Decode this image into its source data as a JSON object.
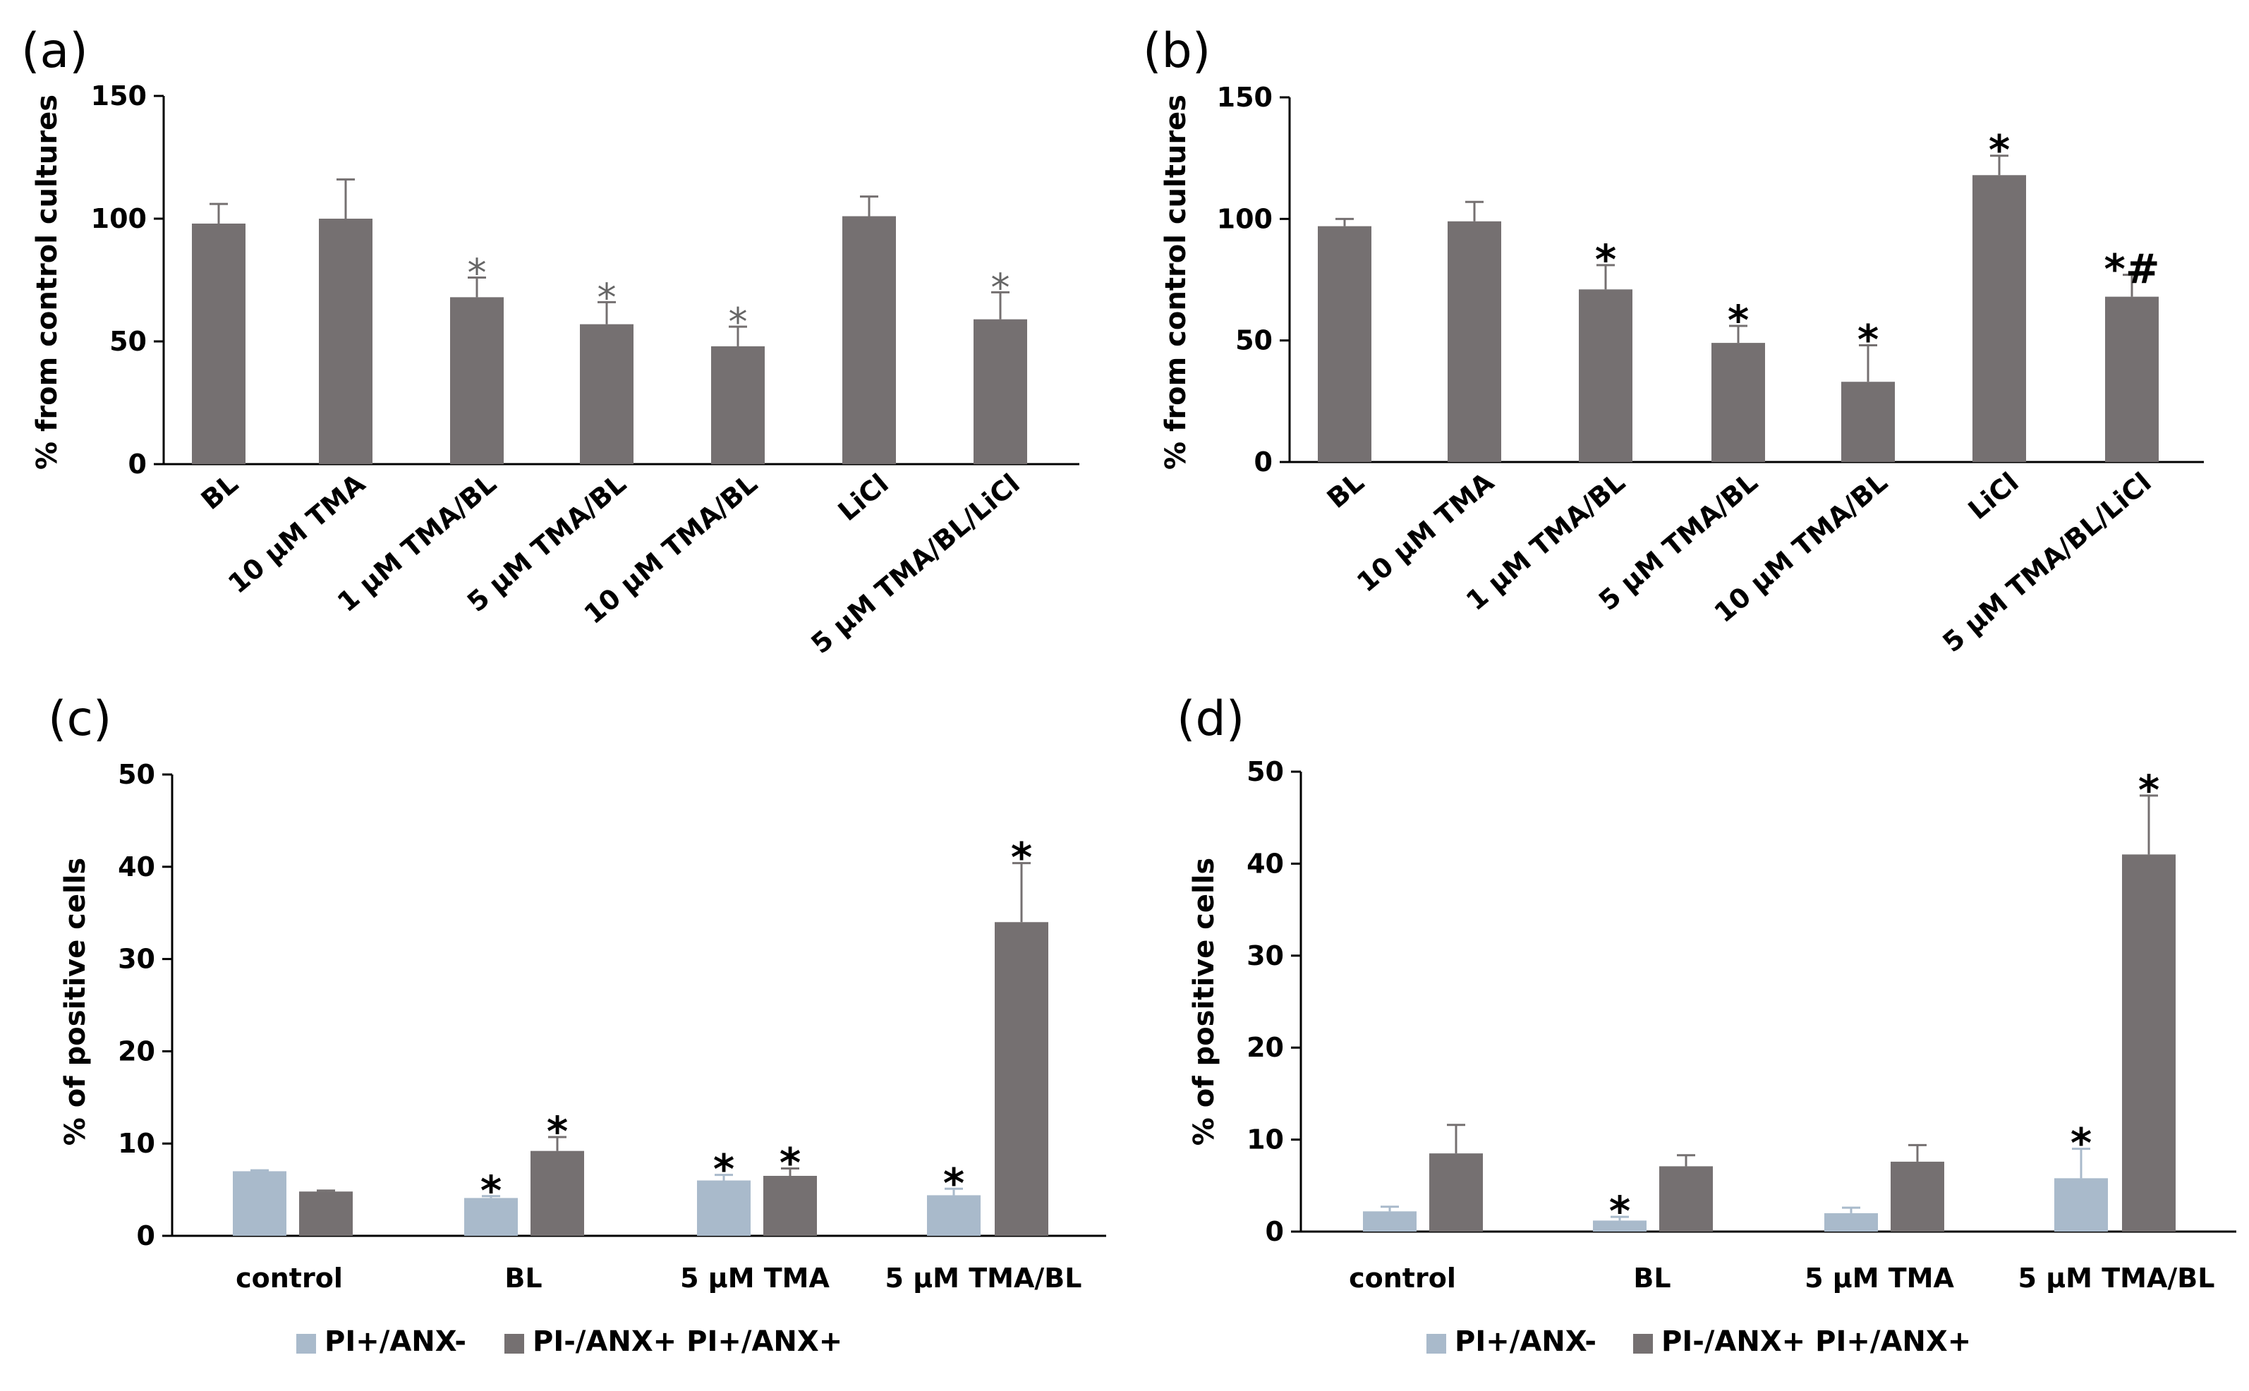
{
  "colors": {
    "dark": "#757071",
    "light": "#a9bacb",
    "axis": "#000000",
    "asterisk_grey": "#6b6b6b"
  },
  "chart_data": [
    {
      "panel": "(a)",
      "type": "bar",
      "ylabel": "% from control cultures",
      "ylim": [
        0,
        150
      ],
      "yticks": [
        0,
        50,
        100,
        150
      ],
      "categories": [
        "BL",
        "10 μM TMA",
        "1 μM TMA/BL",
        "5 μM TMA/BL",
        "10 μM TMA/BL",
        "LiCl",
        "5 μM TMA/BL/LiCl"
      ],
      "series": [
        {
          "name": "value",
          "color": "dark",
          "values": [
            98,
            100,
            68,
            57,
            48,
            101,
            59
          ],
          "errors": [
            8,
            16,
            8,
            9,
            8,
            8,
            11
          ]
        }
      ],
      "annotations": [
        "",
        "",
        "*",
        "*",
        "*",
        "",
        "*"
      ],
      "legend": []
    },
    {
      "panel": "(b)",
      "type": "bar",
      "ylabel": "% from control cultures",
      "ylim": [
        0,
        150
      ],
      "yticks": [
        0,
        50,
        100,
        150
      ],
      "categories": [
        "BL",
        "10 μM TMA",
        "1 μM TMA/BL",
        "5 μM TMA/BL",
        "10 μM TMA/BL",
        "LiCl",
        "5 μM TMA/BL/LiCl"
      ],
      "series": [
        {
          "name": "value",
          "color": "dark",
          "values": [
            97,
            99,
            71,
            49,
            33,
            118,
            68
          ],
          "errors": [
            3,
            8,
            10,
            7,
            15,
            8,
            9
          ]
        }
      ],
      "annotations": [
        "",
        "",
        "*",
        "*",
        "*",
        "*",
        "*#"
      ],
      "legend": []
    },
    {
      "panel": "(c)",
      "type": "bar",
      "ylabel": "% of  positive cells",
      "ylim": [
        0,
        50
      ],
      "yticks": [
        0,
        10,
        20,
        30,
        40,
        50
      ],
      "categories": [
        "control",
        "BL",
        "5 μM TMA",
        "5 μM TMA/BL"
      ],
      "series": [
        {
          "name": "PI+/ANX-",
          "color": "light",
          "values": [
            7.0,
            4.1,
            6.0,
            4.4
          ],
          "errors": [
            0.1,
            0.2,
            0.6,
            0.7
          ],
          "annotations": [
            "",
            "*",
            "*",
            "*"
          ]
        },
        {
          "name": "PI-/ANX+ PI+/ANX+",
          "color": "dark",
          "values": [
            4.8,
            9.2,
            6.5,
            34.0
          ],
          "errors": [
            0.1,
            1.5,
            0.8,
            6.4
          ],
          "annotations": [
            "",
            "*",
            "*",
            "*"
          ]
        }
      ],
      "legend": [
        "PI+/ANX-",
        "PI-/ANX+ PI+/ANX+"
      ]
    },
    {
      "panel": "(d)",
      "type": "bar",
      "ylabel": "% of positive cells",
      "ylim": [
        0,
        50
      ],
      "yticks": [
        0,
        10,
        20,
        30,
        40,
        50
      ],
      "categories": [
        "control",
        "BL",
        "5 μM TMA",
        "5 μM TMA/BL"
      ],
      "series": [
        {
          "name": "PI+/ANX-",
          "color": "light",
          "values": [
            2.2,
            1.2,
            2.0,
            5.8
          ],
          "errors": [
            0.5,
            0.4,
            0.6,
            3.2
          ],
          "annotations": [
            "",
            "*",
            "",
            "*"
          ]
        },
        {
          "name": "PI-/ANX+ PI+/ANX+",
          "color": "dark",
          "values": [
            8.5,
            7.1,
            7.6,
            41.0
          ],
          "errors": [
            3.1,
            1.2,
            1.8,
            6.4
          ],
          "annotations": [
            "",
            "",
            "",
            "*"
          ]
        }
      ],
      "legend": [
        "PI+/ANX-",
        "PI-/ANX+ PI+/ANX+"
      ]
    }
  ]
}
